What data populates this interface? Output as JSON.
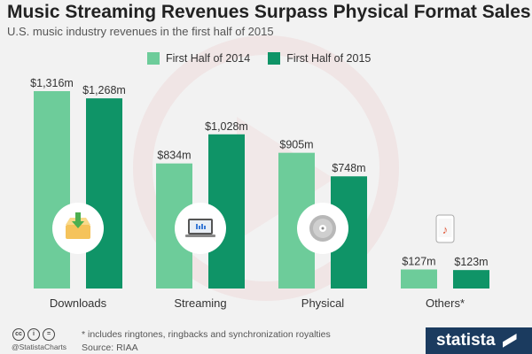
{
  "colors": {
    "series_2014": "#6dcc9a",
    "series_2015": "#0f9467",
    "icon_circle": "#ffffff"
  },
  "chart_data": {
    "type": "bar",
    "title": "Music Streaming Revenues Surpass Physical Format Sales",
    "subtitle": "U.S. music industry revenues in the first half of 2015",
    "categories": [
      "Downloads",
      "Streaming",
      "Physical",
      "Others*"
    ],
    "series": [
      {
        "name": "First Half of 2014",
        "values": [
          1316,
          834,
          905,
          127
        ],
        "labels": [
          "$1,316m",
          "$834m",
          "$905m",
          "$127m"
        ]
      },
      {
        "name": "First Half of 2015",
        "values": [
          1268,
          1028,
          748,
          123
        ],
        "labels": [
          "$1,268m",
          "$1,028m",
          "$748m",
          "$123m"
        ]
      }
    ],
    "category_icons": [
      "download-tray-icon",
      "laptop-icon",
      "cd-disc-icon",
      "phone-music-icon"
    ],
    "unit": "million USD",
    "ylim": [
      0,
      1316
    ],
    "grid": false,
    "legend_position": "top"
  },
  "footer": {
    "note": "* includes ringtones, ringbacks and synchronization royalties",
    "source": "Source: RIAA",
    "handle": "@StatistaCharts",
    "license_icons": [
      "cc",
      "i",
      "="
    ],
    "brand": "statista"
  }
}
